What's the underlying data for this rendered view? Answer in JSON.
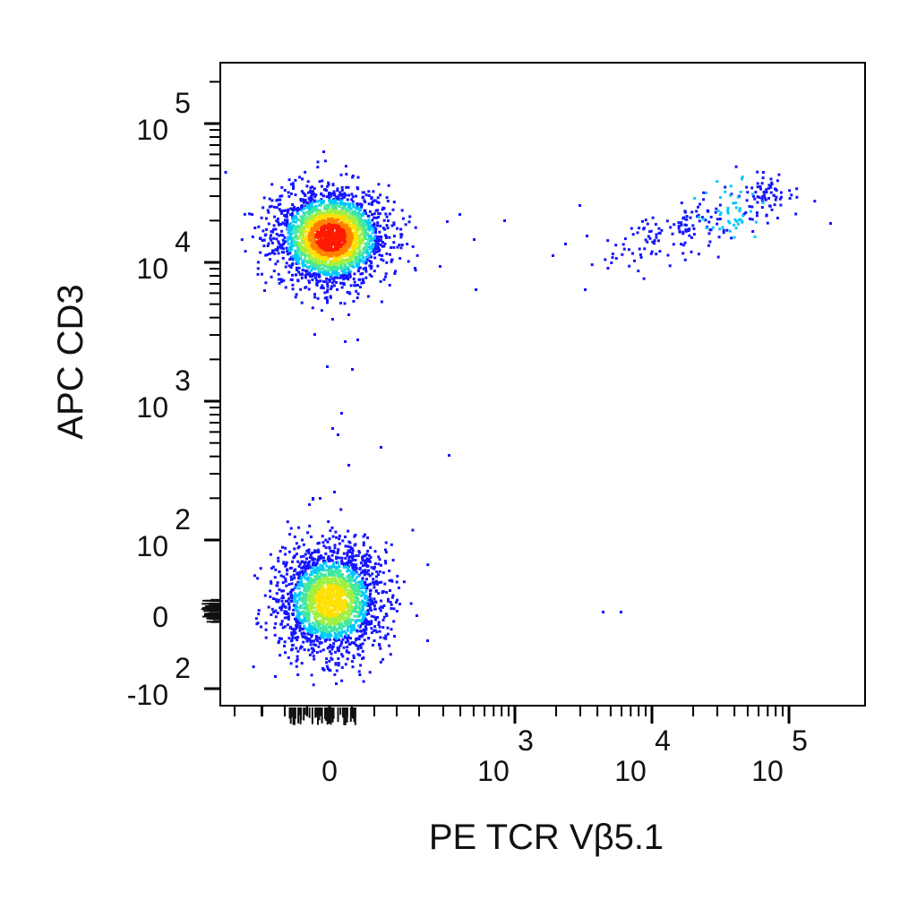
{
  "chart_data": {
    "type": "scatter",
    "plot_style": "density-dot-plot",
    "title": "",
    "xlabel": "PE  TCR Vβ5.1",
    "ylabel": "APC  CD3",
    "x_scale": "biexponential",
    "y_scale": "biexponential",
    "xlim": [
      -200,
      150000
    ],
    "ylim": [
      -150,
      300000
    ],
    "grid": false,
    "legend": "none",
    "x_ticks": [
      {
        "value": 0,
        "base": "0",
        "exp": ""
      },
      {
        "value": 1000,
        "base": "10",
        "exp": "3"
      },
      {
        "value": 10000,
        "base": "10",
        "exp": "4"
      },
      {
        "value": 100000,
        "base": "10",
        "exp": "5"
      }
    ],
    "y_ticks": [
      {
        "value": -100,
        "base": "-10",
        "exp": "2"
      },
      {
        "value": 0,
        "base": "0",
        "exp": ""
      },
      {
        "value": 100,
        "base": "10",
        "exp": "2"
      },
      {
        "value": 1000,
        "base": "10",
        "exp": "3"
      },
      {
        "value": 10000,
        "base": "10",
        "exp": "4"
      },
      {
        "value": 100000,
        "base": "10",
        "exp": "5"
      }
    ],
    "density_colors": [
      "#1414ff",
      "#00c8ff",
      "#40e8a0",
      "#a0f040",
      "#ffe000",
      "#ff8000",
      "#ff1a00"
    ],
    "populations": [
      {
        "name": "",
        "x_center": 0,
        "y_center": 15000,
        "approx_events": 2600
      },
      {
        "name": "",
        "x_center": 0,
        "y_center": 20,
        "approx_events": 2100
      },
      {
        "name": "",
        "x_center": 30000,
        "y_center": 16000,
        "approx_events": 260
      }
    ]
  }
}
